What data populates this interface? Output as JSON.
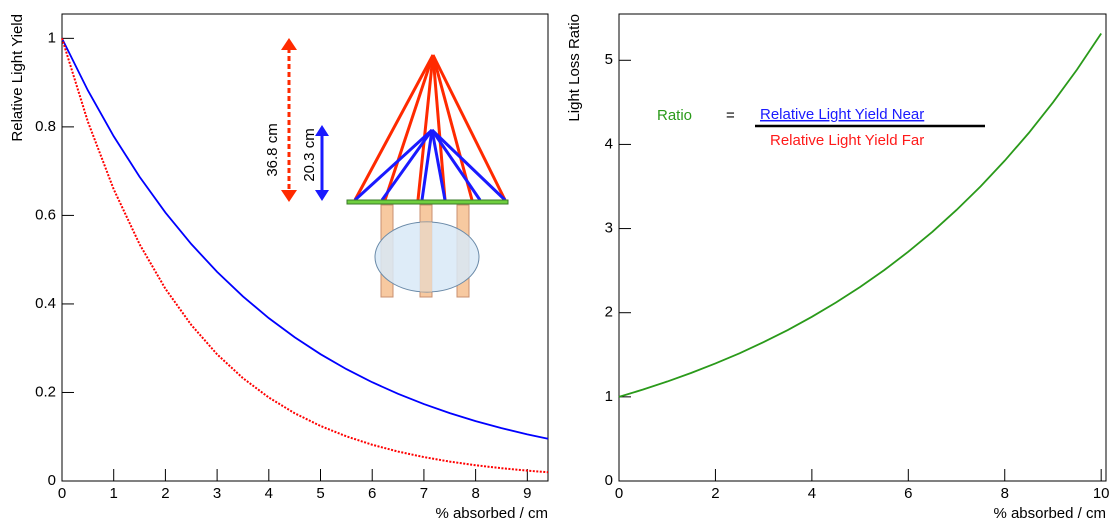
{
  "chart_data": [
    {
      "type": "line",
      "xlabel": "% absorbed / cm",
      "ylabel": "Relative Light Yield",
      "x": [
        0,
        0.5,
        1,
        1.5,
        2,
        2.5,
        3,
        3.5,
        4,
        4.5,
        5,
        5.5,
        6,
        6.5,
        7,
        7.5,
        8,
        8.5,
        9,
        9.4
      ],
      "series": [
        {
          "color": "#0000ff",
          "style": "solid",
          "values": [
            1,
            0.8825,
            0.7788,
            0.6873,
            0.6065,
            0.5353,
            0.4724,
            0.4169,
            0.3679,
            0.3247,
            0.2865,
            0.2528,
            0.2231,
            0.1969,
            0.1738,
            0.1534,
            0.1353,
            0.1194,
            0.1054,
            0.0954
          ]
        },
        {
          "color": "#ff0000",
          "style": "dotted",
          "values": [
            1,
            0.8118,
            0.659,
            0.535,
            0.4343,
            0.3526,
            0.2862,
            0.2323,
            0.1886,
            0.1531,
            0.1243,
            0.1009,
            0.0819,
            0.0665,
            0.054,
            0.0438,
            0.0356,
            0.0289,
            0.0234,
            0.0198
          ]
        }
      ],
      "xlim": [
        0,
        9.4
      ],
      "xticks": [
        0,
        1,
        2,
        3,
        4,
        5,
        6,
        7,
        8,
        9
      ],
      "ylim": [
        0,
        1.055
      ],
      "yticks": [
        0,
        0.2,
        0.4,
        0.6,
        0.8,
        1
      ],
      "annotations": [
        "36.8 cm",
        "20.3 cm"
      ]
    },
    {
      "type": "line",
      "xlabel": "% absorbed / cm",
      "ylabel": "Light Loss Ratio",
      "x": [
        0,
        0.5,
        1,
        1.5,
        2,
        2.5,
        3,
        3.5,
        4,
        4.5,
        5,
        5.5,
        6,
        6.5,
        7,
        7.5,
        8,
        8.5,
        9,
        9.5,
        10
      ],
      "series": [
        {
          "color": "#2a9a1a",
          "style": "solid",
          "values": [
            1,
            1.087,
            1.182,
            1.285,
            1.397,
            1.518,
            1.651,
            1.794,
            1.951,
            2.121,
            2.306,
            2.506,
            2.725,
            2.962,
            3.221,
            3.501,
            3.807,
            4.137,
            4.499,
            4.89,
            5.318
          ]
        }
      ],
      "xlim": [
        0,
        10.1
      ],
      "xticks": [
        0,
        2,
        4,
        6,
        8,
        10
      ],
      "ylim": [
        0,
        5.55
      ],
      "yticks": [
        0,
        1,
        2,
        3,
        4,
        5
      ],
      "annotations": [
        "Ratio",
        "=",
        "Relative Light Yield Near",
        "Relative Light Yield Far"
      ]
    }
  ]
}
